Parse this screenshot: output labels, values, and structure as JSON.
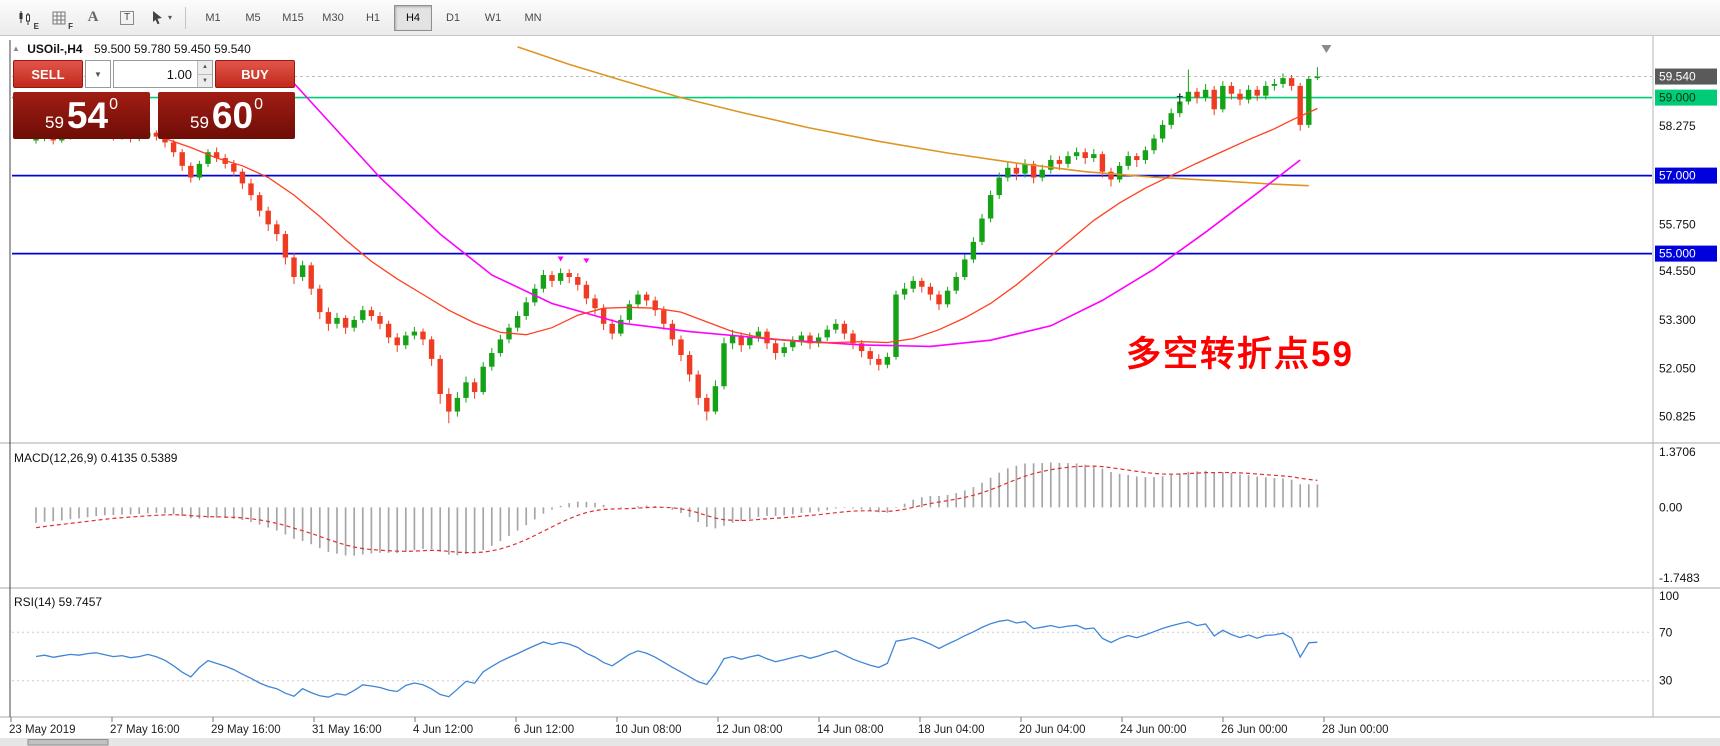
{
  "toolbar": {
    "icons": [
      {
        "sub": "E"
      },
      {
        "sub": "F"
      },
      {
        "label": "A"
      },
      {
        "label": "T"
      },
      {
        "label": ""
      }
    ],
    "timeframes": [
      {
        "label": "M1",
        "active": false
      },
      {
        "label": "M5",
        "active": false
      },
      {
        "label": "M15",
        "active": false
      },
      {
        "label": "M30",
        "active": false
      },
      {
        "label": "H1",
        "active": false
      },
      {
        "label": "H4",
        "active": true
      },
      {
        "label": "D1",
        "active": false
      },
      {
        "label": "W1",
        "active": false
      },
      {
        "label": "MN",
        "active": false
      }
    ]
  },
  "chart": {
    "expander": "▲",
    "symbol": "USOil-,H4",
    "ohlc": "59.500 59.780 59.450 59.540",
    "annotation": "多空转折点59"
  },
  "trade": {
    "sell_label": "SELL",
    "buy_label": "BUY",
    "volume": "1.00",
    "bid_prefix": "59",
    "bid_big": "54",
    "bid_sup": "0",
    "ask_prefix": "59",
    "ask_big": "60",
    "ask_sup": "0"
  },
  "price_axis": [
    {
      "text": "59.540",
      "price": 59.54,
      "style": "bid"
    },
    {
      "text": "59.000",
      "price": 59.0,
      "style": "green"
    },
    {
      "text": "58.275",
      "price": 58.275,
      "style": "plain"
    },
    {
      "text": "57.000",
      "price": 57.0,
      "style": "blue"
    },
    {
      "text": "55.750",
      "price": 55.75,
      "style": "plain"
    },
    {
      "text": "55.000",
      "price": 55.0,
      "style": "blue"
    },
    {
      "text": "54.550",
      "price": 54.55,
      "style": "plain"
    },
    {
      "text": "53.300",
      "price": 53.3,
      "style": "plain"
    },
    {
      "text": "52.050",
      "price": 52.05,
      "style": "plain"
    },
    {
      "text": "50.825",
      "price": 50.825,
      "style": "plain"
    }
  ],
  "macd": {
    "label": "MACD(12,26,9) 0.4135 0.5389",
    "axis": [
      {
        "text": "1.3706",
        "v": 1.3706
      },
      {
        "text": "0.00",
        "v": 0
      },
      {
        "text": "-1.7483",
        "v": -1.7483
      }
    ]
  },
  "rsi": {
    "label": "RSI(14) 59.7457",
    "axis": [
      {
        "text": "100",
        "v": 100
      },
      {
        "text": "70",
        "v": 70
      },
      {
        "text": "30",
        "v": 30
      }
    ],
    "levels": [
      70,
      30
    ]
  },
  "time_axis": [
    "23 May 2019",
    "27 May 16:00",
    "29 May 16:00",
    "31 May 16:00",
    "4 Jun 12:00",
    "6 Jun 12:00",
    "10 Jun 08:00",
    "12 Jun 08:00",
    "14 Jun 08:00",
    "18 Jun 04:00",
    "20 Jun 04:00",
    "24 Jun 00:00",
    "26 Jun 00:00",
    "28 Jun 00:00"
  ],
  "chart_data": {
    "type": "candlestick",
    "symbol": "USOil-",
    "timeframe": "H4",
    "ohlc_current": {
      "open": 59.5,
      "high": 59.78,
      "low": 59.45,
      "close": 59.54
    },
    "price_range_visible": [
      50.4,
      60.35
    ],
    "candles": [
      [
        57.9,
        58.02,
        57.82,
        57.95
      ],
      [
        57.95,
        58.12,
        57.88,
        58.05
      ],
      [
        58.05,
        58.1,
        57.8,
        57.9
      ],
      [
        57.9,
        58.06,
        57.84,
        58.0
      ],
      [
        58.0,
        58.16,
        57.92,
        58.1
      ],
      [
        58.1,
        58.18,
        57.96,
        58.05
      ],
      [
        58.05,
        58.22,
        57.98,
        58.15
      ],
      [
        58.15,
        58.3,
        58.05,
        58.2
      ],
      [
        58.2,
        58.26,
        58.0,
        58.1
      ],
      [
        58.1,
        58.18,
        57.9,
        58.0
      ],
      [
        58.0,
        58.12,
        57.92,
        58.05
      ],
      [
        58.05,
        58.1,
        57.85,
        57.95
      ],
      [
        57.95,
        58.08,
        57.88,
        58.0
      ],
      [
        58.0,
        58.18,
        57.94,
        58.1
      ],
      [
        58.1,
        58.16,
        57.9,
        58.0
      ],
      [
        58.0,
        58.06,
        57.72,
        57.85
      ],
      [
        57.85,
        57.92,
        57.48,
        57.6
      ],
      [
        57.6,
        57.68,
        57.12,
        57.25
      ],
      [
        57.25,
        57.34,
        56.82,
        56.95
      ],
      [
        56.95,
        57.38,
        56.88,
        57.3
      ],
      [
        57.3,
        57.68,
        57.22,
        57.6
      ],
      [
        57.6,
        57.72,
        57.35,
        57.45
      ],
      [
        57.45,
        57.55,
        57.18,
        57.3
      ],
      [
        57.3,
        57.4,
        56.98,
        57.1
      ],
      [
        57.1,
        57.18,
        56.66,
        56.8
      ],
      [
        56.8,
        56.92,
        56.36,
        56.5
      ],
      [
        56.5,
        56.58,
        55.95,
        56.1
      ],
      [
        56.1,
        56.2,
        55.58,
        55.75
      ],
      [
        55.75,
        55.85,
        55.32,
        55.5
      ],
      [
        55.5,
        55.58,
        54.72,
        54.9
      ],
      [
        54.9,
        55.02,
        54.22,
        54.4
      ],
      [
        54.4,
        54.82,
        54.3,
        54.7
      ],
      [
        54.7,
        54.78,
        53.94,
        54.1
      ],
      [
        54.1,
        54.2,
        53.32,
        53.5
      ],
      [
        53.5,
        53.62,
        53.02,
        53.2
      ],
      [
        53.2,
        53.48,
        53.08,
        53.35
      ],
      [
        53.35,
        53.42,
        52.94,
        53.1
      ],
      [
        53.1,
        53.4,
        53.0,
        53.3
      ],
      [
        53.3,
        53.66,
        53.22,
        53.55
      ],
      [
        53.55,
        53.64,
        53.28,
        53.4
      ],
      [
        53.4,
        53.5,
        53.06,
        53.2
      ],
      [
        53.2,
        53.28,
        52.7,
        52.85
      ],
      [
        52.85,
        52.96,
        52.48,
        52.65
      ],
      [
        52.65,
        53.0,
        52.55,
        52.9
      ],
      [
        52.9,
        53.12,
        52.8,
        53.0
      ],
      [
        53.0,
        53.08,
        52.65,
        52.8
      ],
      [
        52.8,
        52.88,
        52.12,
        52.3
      ],
      [
        52.3,
        52.4,
        51.15,
        51.4
      ],
      [
        51.4,
        51.55,
        50.65,
        50.95
      ],
      [
        50.95,
        51.45,
        50.82,
        51.3
      ],
      [
        51.3,
        51.85,
        51.18,
        51.7
      ],
      [
        51.7,
        51.8,
        51.28,
        51.45
      ],
      [
        51.45,
        52.22,
        51.38,
        52.1
      ],
      [
        52.1,
        52.58,
        52.0,
        52.45
      ],
      [
        52.45,
        52.92,
        52.36,
        52.8
      ],
      [
        52.8,
        53.2,
        52.7,
        53.1
      ],
      [
        53.1,
        53.52,
        53.0,
        53.4
      ],
      [
        53.4,
        53.88,
        53.3,
        53.75
      ],
      [
        53.75,
        54.22,
        53.66,
        54.1
      ],
      [
        54.1,
        54.58,
        54.0,
        54.45
      ],
      [
        54.45,
        54.55,
        54.14,
        54.3
      ],
      [
        54.3,
        54.62,
        54.2,
        54.5
      ],
      [
        54.5,
        54.6,
        54.24,
        54.4
      ],
      [
        54.4,
        54.5,
        54.05,
        54.2
      ],
      [
        54.2,
        54.3,
        53.7,
        53.85
      ],
      [
        53.85,
        53.95,
        53.44,
        53.6
      ],
      [
        53.6,
        53.7,
        53.04,
        53.2
      ],
      [
        53.2,
        53.32,
        52.8,
        52.95
      ],
      [
        52.95,
        53.42,
        52.88,
        53.3
      ],
      [
        53.3,
        53.8,
        53.22,
        53.7
      ],
      [
        53.7,
        54.05,
        53.6,
        53.95
      ],
      [
        53.95,
        54.02,
        53.66,
        53.8
      ],
      [
        53.8,
        53.9,
        53.4,
        53.55
      ],
      [
        53.55,
        53.65,
        53.05,
        53.2
      ],
      [
        53.2,
        53.3,
        52.64,
        52.8
      ],
      [
        52.8,
        52.9,
        52.24,
        52.4
      ],
      [
        52.4,
        52.5,
        51.72,
        51.9
      ],
      [
        51.9,
        52.0,
        51.12,
        51.3
      ],
      [
        51.3,
        51.4,
        50.72,
        50.95
      ],
      [
        50.95,
        51.75,
        50.88,
        51.6
      ],
      [
        51.6,
        52.85,
        51.52,
        52.7
      ],
      [
        52.7,
        53.05,
        52.55,
        52.9
      ],
      [
        52.9,
        52.98,
        52.48,
        52.65
      ],
      [
        52.65,
        52.98,
        52.55,
        52.85
      ],
      [
        52.85,
        53.12,
        52.74,
        53.0
      ],
      [
        53.0,
        53.08,
        52.55,
        52.7
      ],
      [
        52.7,
        52.8,
        52.28,
        52.45
      ],
      [
        52.45,
        52.72,
        52.35,
        52.6
      ],
      [
        52.6,
        52.88,
        52.5,
        52.75
      ],
      [
        52.75,
        53.0,
        52.64,
        52.9
      ],
      [
        52.9,
        52.98,
        52.55,
        52.7
      ],
      [
        52.7,
        52.96,
        52.6,
        52.85
      ],
      [
        52.85,
        53.16,
        52.76,
        53.05
      ],
      [
        53.05,
        53.32,
        52.95,
        53.2
      ],
      [
        53.2,
        53.28,
        52.8,
        52.95
      ],
      [
        52.95,
        53.04,
        52.55,
        52.7
      ],
      [
        52.7,
        52.78,
        52.34,
        52.5
      ],
      [
        52.5,
        52.6,
        52.14,
        52.3
      ],
      [
        52.3,
        52.42,
        52.0,
        52.15
      ],
      [
        52.15,
        52.46,
        52.06,
        52.35
      ],
      [
        52.35,
        54.05,
        52.28,
        53.95
      ],
      [
        53.95,
        54.25,
        53.82,
        54.1
      ],
      [
        54.1,
        54.42,
        54.0,
        54.3
      ],
      [
        54.3,
        54.38,
        54.0,
        54.15
      ],
      [
        54.15,
        54.25,
        53.8,
        53.95
      ],
      [
        53.95,
        54.05,
        53.55,
        53.7
      ],
      [
        53.7,
        54.15,
        53.62,
        54.05
      ],
      [
        54.05,
        54.52,
        53.96,
        54.4
      ],
      [
        54.4,
        54.98,
        54.32,
        54.85
      ],
      [
        54.85,
        55.42,
        54.76,
        55.3
      ],
      [
        55.3,
        56.02,
        55.22,
        55.9
      ],
      [
        55.9,
        56.62,
        55.8,
        56.5
      ],
      [
        56.5,
        57.08,
        56.4,
        56.95
      ],
      [
        56.95,
        57.35,
        56.85,
        57.2
      ],
      [
        57.2,
        57.3,
        56.88,
        57.05
      ],
      [
        57.05,
        57.42,
        56.95,
        57.3
      ],
      [
        57.3,
        57.38,
        56.8,
        56.95
      ],
      [
        56.95,
        57.28,
        56.85,
        57.15
      ],
      [
        57.15,
        57.52,
        57.05,
        57.4
      ],
      [
        57.4,
        57.5,
        57.14,
        57.3
      ],
      [
        57.3,
        57.62,
        57.2,
        57.5
      ],
      [
        57.5,
        57.72,
        57.4,
        57.6
      ],
      [
        57.6,
        57.7,
        57.3,
        57.45
      ],
      [
        57.45,
        57.68,
        57.35,
        57.55
      ],
      [
        57.55,
        57.62,
        56.95,
        57.1
      ],
      [
        57.1,
        57.2,
        56.72,
        56.9
      ],
      [
        56.9,
        57.35,
        56.82,
        57.25
      ],
      [
        57.25,
        57.62,
        57.15,
        57.5
      ],
      [
        57.5,
        57.58,
        57.22,
        57.4
      ],
      [
        57.4,
        57.75,
        57.3,
        57.65
      ],
      [
        57.65,
        58.05,
        57.55,
        57.95
      ],
      [
        57.95,
        58.42,
        57.85,
        58.3
      ],
      [
        58.3,
        58.72,
        58.2,
        58.6
      ],
      [
        58.6,
        59.02,
        58.5,
        58.9
      ],
      [
        58.9,
        59.72,
        58.82,
        59.15
      ],
      [
        59.15,
        59.25,
        58.85,
        59.0
      ],
      [
        59.0,
        59.35,
        58.9,
        59.2
      ],
      [
        59.2,
        59.3,
        58.55,
        58.7
      ],
      [
        58.7,
        59.42,
        58.62,
        59.3
      ],
      [
        59.3,
        59.4,
        58.95,
        59.1
      ],
      [
        59.1,
        59.22,
        58.8,
        58.95
      ],
      [
        58.95,
        59.32,
        58.85,
        59.2
      ],
      [
        59.2,
        59.3,
        58.92,
        59.05
      ],
      [
        59.05,
        59.42,
        58.95,
        59.3
      ],
      [
        59.3,
        59.48,
        59.18,
        59.35
      ],
      [
        59.35,
        59.62,
        59.25,
        59.5
      ],
      [
        59.5,
        59.58,
        59.18,
        59.3
      ],
      [
        59.3,
        59.38,
        58.15,
        58.3
      ],
      [
        58.3,
        59.55,
        58.22,
        59.48
      ],
      [
        59.5,
        59.78,
        59.45,
        59.54
      ]
    ],
    "overlays": {
      "ma_slow": [
        [
          56,
          60.3
        ],
        [
          62,
          59.85
        ],
        [
          68,
          59.45
        ],
        [
          75,
          59.0
        ],
        [
          82,
          58.62
        ],
        [
          90,
          58.22
        ],
        [
          98,
          57.88
        ],
        [
          106,
          57.58
        ],
        [
          114,
          57.32
        ],
        [
          122,
          57.1
        ],
        [
          130,
          56.96
        ],
        [
          138,
          56.86
        ],
        [
          144,
          56.78
        ],
        [
          148,
          56.74
        ]
      ],
      "ma_mid": [
        [
          28,
          59.85
        ],
        [
          34,
          58.4
        ],
        [
          40,
          56.95
        ],
        [
          47,
          55.5
        ],
        [
          53,
          54.45
        ],
        [
          60,
          53.72
        ],
        [
          68,
          53.22
        ],
        [
          76,
          53.0
        ],
        [
          86,
          52.8
        ],
        [
          96,
          52.66
        ],
        [
          104,
          52.62
        ],
        [
          111,
          52.78
        ],
        [
          118,
          53.15
        ],
        [
          124,
          53.8
        ],
        [
          130,
          54.6
        ],
        [
          136,
          55.55
        ],
        [
          142,
          56.55
        ],
        [
          147,
          57.4
        ]
      ],
      "ma_fast": [
        [
          15,
          57.95
        ],
        [
          18,
          57.72
        ],
        [
          21,
          57.45
        ],
        [
          24,
          57.25
        ],
        [
          27,
          56.95
        ],
        [
          30,
          56.5
        ],
        [
          33,
          55.95
        ],
        [
          36,
          55.35
        ],
        [
          39,
          54.8
        ],
        [
          42,
          54.35
        ],
        [
          45,
          53.95
        ],
        [
          48,
          53.55
        ],
        [
          51,
          53.22
        ],
        [
          54,
          52.98
        ],
        [
          57,
          52.92
        ],
        [
          60,
          53.1
        ],
        [
          63,
          53.42
        ],
        [
          66,
          53.6
        ],
        [
          69,
          53.62
        ],
        [
          72,
          53.6
        ],
        [
          75,
          53.5
        ],
        [
          78,
          53.25
        ],
        [
          81,
          53.0
        ],
        [
          84,
          52.86
        ],
        [
          87,
          52.78
        ],
        [
          90,
          52.72
        ],
        [
          93,
          52.72
        ],
        [
          96,
          52.74
        ],
        [
          99,
          52.72
        ],
        [
          102,
          52.82
        ],
        [
          105,
          53.05
        ],
        [
          108,
          53.35
        ],
        [
          111,
          53.72
        ],
        [
          114,
          54.2
        ],
        [
          117,
          54.75
        ],
        [
          120,
          55.3
        ],
        [
          123,
          55.85
        ],
        [
          126,
          56.3
        ],
        [
          129,
          56.68
        ],
        [
          132,
          57.0
        ],
        [
          135,
          57.32
        ],
        [
          138,
          57.62
        ],
        [
          141,
          57.92
        ],
        [
          144,
          58.2
        ],
        [
          146,
          58.42
        ],
        [
          148,
          58.62
        ],
        [
          149,
          58.72
        ]
      ]
    },
    "hlines": [
      {
        "price": 59.0,
        "style": "green"
      },
      {
        "price": 57.0,
        "style": "blue"
      },
      {
        "price": 55.0,
        "style": "blue"
      }
    ],
    "bid_line": 59.54,
    "markers": [
      {
        "i": 61,
        "price": 54.85
      },
      {
        "i": 64,
        "price": 54.8
      }
    ],
    "dagger": {
      "i": 133,
      "price": 58.85,
      "text": "†"
    },
    "macd": {
      "params": [
        12,
        26,
        9
      ],
      "value": 0.4135,
      "signal": 0.5389,
      "scale": [
        -1.7483,
        1.3706
      ]
    },
    "rsi": {
      "period": 14,
      "value": 59.7457,
      "levels": [
        70,
        30
      ]
    },
    "colors": {
      "up": "#16a216",
      "down": "#ef3b22",
      "ma_fast": "#ff4020",
      "ma_mid": "#ff00ff",
      "ma_slow": "#dd9522",
      "line_green": "#00cc77",
      "line_blue": "#0000dd",
      "macd_hist": "#a6a6a6",
      "macd_signal": "#e03030",
      "rsi": "#3f86d6",
      "annotation": "#ff0000"
    }
  }
}
